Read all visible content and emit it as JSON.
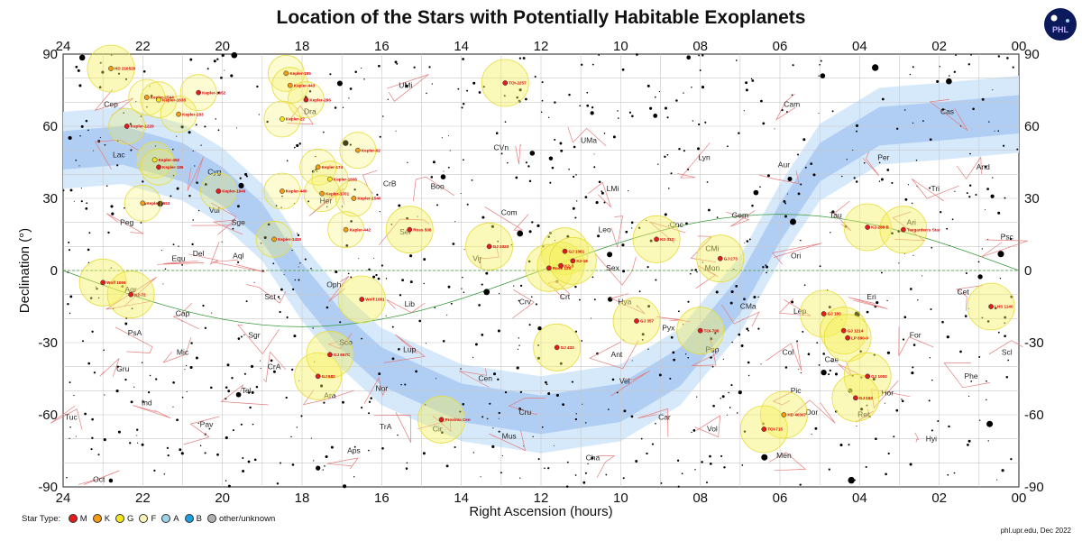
{
  "title": "Location of the Stars with Potentially Habitable Exoplanets",
  "logo_text": "PHL",
  "credit": "phl.upr.edu, Dec 2022",
  "map": {
    "xlabel": "Right Ascension (hours)",
    "ylabel": "Declination (°)",
    "ra_ticks": [
      "24",
      "22",
      "20",
      "18",
      "16",
      "14",
      "12",
      "10",
      "08",
      "06",
      "04",
      "02",
      "00"
    ],
    "dec_ticks": [
      "90",
      "60",
      "30",
      "0",
      "-30",
      "-60",
      "-90"
    ]
  },
  "chart_data": {
    "type": "scatter",
    "xlabel": "Right Ascension (hours)",
    "ylabel": "Declination (°)",
    "xlim": [
      24,
      0
    ],
    "ylim": [
      -90,
      90
    ],
    "grid": true,
    "constellations": [
      {
        "name": "UMi",
        "ra": 15.4,
        "dec": 76
      },
      {
        "name": "Cep",
        "ra": 22.8,
        "dec": 68
      },
      {
        "name": "Dra",
        "ra": 17.8,
        "dec": 65
      },
      {
        "name": "Cam",
        "ra": 5.7,
        "dec": 68
      },
      {
        "name": "Cas",
        "ra": 1.8,
        "dec": 65
      },
      {
        "name": "CVn",
        "ra": 13.0,
        "dec": 50
      },
      {
        "name": "UMa",
        "ra": 10.8,
        "dec": 53
      },
      {
        "name": "Lac",
        "ra": 22.6,
        "dec": 47
      },
      {
        "name": "Cyg",
        "ra": 20.2,
        "dec": 40
      },
      {
        "name": "CrB",
        "ra": 15.8,
        "dec": 35
      },
      {
        "name": "Boo",
        "ra": 14.6,
        "dec": 34
      },
      {
        "name": "Lyn",
        "ra": 7.9,
        "dec": 46
      },
      {
        "name": "Per",
        "ra": 3.4,
        "dec": 46
      },
      {
        "name": "Aur",
        "ra": 5.9,
        "dec": 43
      },
      {
        "name": "And",
        "ra": 0.9,
        "dec": 42
      },
      {
        "name": "LMi",
        "ra": 10.2,
        "dec": 33
      },
      {
        "name": "Tri",
        "ra": 2.1,
        "dec": 33
      },
      {
        "name": "Vul",
        "ra": 20.2,
        "dec": 24
      },
      {
        "name": "Com",
        "ra": 12.8,
        "dec": 23
      },
      {
        "name": "Gem",
        "ra": 7.0,
        "dec": 22
      },
      {
        "name": "Tau",
        "ra": 4.6,
        "dec": 22
      },
      {
        "name": "Peg",
        "ra": 22.4,
        "dec": 19
      },
      {
        "name": "Sge",
        "ra": 19.6,
        "dec": 19
      },
      {
        "name": "Her",
        "ra": 17.4,
        "dec": 28
      },
      {
        "name": "Ser",
        "ra": 15.4,
        "dec": 15
      },
      {
        "name": "Leo",
        "ra": 10.4,
        "dec": 16
      },
      {
        "name": "Cnc",
        "ra": 8.6,
        "dec": 18
      },
      {
        "name": "Ari",
        "ra": 2.7,
        "dec": 19
      },
      {
        "name": "Psc",
        "ra": 0.3,
        "dec": 13
      },
      {
        "name": "Vir",
        "ra": 13.6,
        "dec": 4
      },
      {
        "name": "CMi",
        "ra": 7.7,
        "dec": 8
      },
      {
        "name": "Equ",
        "ra": 21.1,
        "dec": 4
      },
      {
        "name": "Del",
        "ra": 20.6,
        "dec": 6
      },
      {
        "name": "Aql",
        "ra": 19.6,
        "dec": 5
      },
      {
        "name": "Ori",
        "ra": 5.6,
        "dec": 5
      },
      {
        "name": "Sex",
        "ra": 10.2,
        "dec": 0
      },
      {
        "name": "Mon",
        "ra": 7.7,
        "dec": 0
      },
      {
        "name": "Oph",
        "ra": 17.2,
        "dec": -7
      },
      {
        "name": "Sct",
        "ra": 18.8,
        "dec": -12
      },
      {
        "name": "Lib",
        "ra": 15.3,
        "dec": -15
      },
      {
        "name": "Crv",
        "ra": 12.4,
        "dec": -14
      },
      {
        "name": "Crt",
        "ra": 11.4,
        "dec": -12
      },
      {
        "name": "Hya",
        "ra": 9.9,
        "dec": -14
      },
      {
        "name": "Eri",
        "ra": 3.7,
        "dec": -12
      },
      {
        "name": "Cet",
        "ra": 1.4,
        "dec": -10
      },
      {
        "name": "Aqr",
        "ra": 22.3,
        "dec": -9
      },
      {
        "name": "Cap",
        "ra": 21.0,
        "dec": -19
      },
      {
        "name": "Lep",
        "ra": 5.5,
        "dec": -18
      },
      {
        "name": "CMa",
        "ra": 6.8,
        "dec": -16
      },
      {
        "name": "PsA",
        "ra": 22.2,
        "dec": -27
      },
      {
        "name": "Sgr",
        "ra": 19.2,
        "dec": -28
      },
      {
        "name": "Sco",
        "ra": 16.9,
        "dec": -31
      },
      {
        "name": "Pyx",
        "ra": 8.8,
        "dec": -25
      },
      {
        "name": "Pup",
        "ra": 7.7,
        "dec": -34
      },
      {
        "name": "For",
        "ra": 2.6,
        "dec": -28
      },
      {
        "name": "Mic",
        "ra": 21.0,
        "dec": -35
      },
      {
        "name": "Lup",
        "ra": 15.3,
        "dec": -34
      },
      {
        "name": "Ant",
        "ra": 10.1,
        "dec": -36
      },
      {
        "name": "Col",
        "ra": 5.8,
        "dec": -35
      },
      {
        "name": "Cae",
        "ra": 4.7,
        "dec": -38
      },
      {
        "name": "Scl",
        "ra": 0.3,
        "dec": -35
      },
      {
        "name": "Gru",
        "ra": 22.5,
        "dec": -42
      },
      {
        "name": "CrA",
        "ra": 18.7,
        "dec": -41
      },
      {
        "name": "Ara",
        "ra": 17.3,
        "dec": -53
      },
      {
        "name": "Nor",
        "ra": 16.0,
        "dec": -50
      },
      {
        "name": "Cen",
        "ra": 13.4,
        "dec": -46
      },
      {
        "name": "Vel",
        "ra": 9.9,
        "dec": -47
      },
      {
        "name": "Phe",
        "ra": 1.2,
        "dec": -45
      },
      {
        "name": "Hor",
        "ra": 3.3,
        "dec": -52
      },
      {
        "name": "Tel",
        "ra": 19.4,
        "dec": -51
      },
      {
        "name": "Pic",
        "ra": 5.6,
        "dec": -51
      },
      {
        "name": "Ind",
        "ra": 21.9,
        "dec": -56
      },
      {
        "name": "Cru",
        "ra": 12.4,
        "dec": -60
      },
      {
        "name": "Car",
        "ra": 8.9,
        "dec": -62
      },
      {
        "name": "Dor",
        "ra": 5.2,
        "dec": -60
      },
      {
        "name": "Ret",
        "ra": 3.9,
        "dec": -61
      },
      {
        "name": "Tuc",
        "ra": 23.8,
        "dec": -62
      },
      {
        "name": "Pav",
        "ra": 20.4,
        "dec": -65
      },
      {
        "name": "TrA",
        "ra": 15.9,
        "dec": -66
      },
      {
        "name": "Cir",
        "ra": 14.6,
        "dec": -67
      },
      {
        "name": "Mus",
        "ra": 12.8,
        "dec": -70
      },
      {
        "name": "Vol",
        "ra": 7.7,
        "dec": -67
      },
      {
        "name": "Hyi",
        "ra": 2.2,
        "dec": -71
      },
      {
        "name": "Aps",
        "ra": 16.7,
        "dec": -76
      },
      {
        "name": "Cha",
        "ra": 10.7,
        "dec": -79
      },
      {
        "name": "Men",
        "ra": 5.9,
        "dec": -78
      },
      {
        "name": "Oct",
        "ra": 23.1,
        "dec": -88
      }
    ],
    "planet_hosts": [
      {
        "label": "HD 216520",
        "ra": 22.8,
        "dec": 84,
        "type": "K"
      },
      {
        "label": "TOI-2257",
        "ra": 12.9,
        "dec": 78,
        "type": "M"
      },
      {
        "label": "Kepler-1544",
        "ra": 21.9,
        "dec": 72,
        "type": "K"
      },
      {
        "label": "Kepler-1638",
        "ra": 21.6,
        "dec": 71,
        "type": "G"
      },
      {
        "label": "Kepler-1652",
        "ra": 20.6,
        "dec": 74,
        "type": "M"
      },
      {
        "label": "Kepler-155",
        "ra": 18.4,
        "dec": 82,
        "type": "K"
      },
      {
        "label": "Kepler-443",
        "ra": 18.3,
        "dec": 77,
        "type": "K"
      },
      {
        "label": "Kepler-296",
        "ra": 17.9,
        "dec": 71,
        "type": "M"
      },
      {
        "label": "Kepler-283",
        "ra": 21.1,
        "dec": 65,
        "type": "K"
      },
      {
        "label": "Kepler-1229",
        "ra": 22.4,
        "dec": 60,
        "type": "M"
      },
      {
        "label": "Kepler-22",
        "ra": 18.5,
        "dec": 63,
        "type": "G"
      },
      {
        "label": "Kepler-62",
        "ra": 16.6,
        "dec": 50,
        "type": "K"
      },
      {
        "label": "Kepler-452",
        "ra": 21.7,
        "dec": 46,
        "type": "G"
      },
      {
        "label": "Kepler-186",
        "ra": 21.6,
        "dec": 43,
        "type": "M"
      },
      {
        "label": "Kepler-174",
        "ra": 17.6,
        "dec": 43,
        "type": "K"
      },
      {
        "label": "Kepler-1606",
        "ra": 17.3,
        "dec": 38,
        "type": "G"
      },
      {
        "label": "Kepler-440",
        "ra": 18.5,
        "dec": 33,
        "type": "K"
      },
      {
        "label": "Kepler-1701",
        "ra": 17.5,
        "dec": 32,
        "type": "K"
      },
      {
        "label": "Kepler-1540",
        "ra": 16.7,
        "dec": 30,
        "type": "K"
      },
      {
        "label": "Kepler-1649",
        "ra": 20.1,
        "dec": 33,
        "type": "M"
      },
      {
        "label": "Kepler-1653",
        "ra": 22.0,
        "dec": 28,
        "type": "K"
      },
      {
        "label": "Kepler-442",
        "ra": 16.9,
        "dec": 17,
        "type": "K"
      },
      {
        "label": "Kepler-1410",
        "ra": 18.7,
        "dec": 13,
        "type": "K"
      },
      {
        "label": "Ross 508",
        "ra": 15.3,
        "dec": 17,
        "type": "M"
      },
      {
        "label": "GJ 3323",
        "ra": 13.3,
        "dec": 10,
        "type": "M"
      },
      {
        "label": "GJ 1061",
        "ra": 11.4,
        "dec": 8,
        "type": "M"
      },
      {
        "label": "Ross 128",
        "ra": 11.8,
        "dec": 1,
        "type": "M"
      },
      {
        "label": "K2-3",
        "ra": 11.5,
        "dec": 2,
        "type": "M"
      },
      {
        "label": "K2-18",
        "ra": 11.2,
        "dec": 4,
        "type": "M"
      },
      {
        "label": "K2-332",
        "ra": 9.1,
        "dec": 13,
        "type": "M"
      },
      {
        "label": "GJ 273",
        "ra": 7.5,
        "dec": 5,
        "type": "M"
      },
      {
        "label": "K2-288 B",
        "ra": 3.8,
        "dec": 18,
        "type": "M"
      },
      {
        "label": "Teegarden's Star",
        "ra": 2.9,
        "dec": 17,
        "type": "M"
      },
      {
        "label": "Wolf 1069",
        "ra": 23.0,
        "dec": -5,
        "type": "M"
      },
      {
        "label": "K2-72",
        "ra": 22.3,
        "dec": -10,
        "type": "M"
      },
      {
        "label": "Wolf 1061",
        "ra": 16.5,
        "dec": -12,
        "type": "M"
      },
      {
        "label": "GJ 357",
        "ra": 9.6,
        "dec": -21,
        "type": "M"
      },
      {
        "label": "GJ 433",
        "ra": 11.6,
        "dec": -32,
        "type": "M"
      },
      {
        "label": "TOI-700",
        "ra": 8.0,
        "dec": -25,
        "type": "M"
      },
      {
        "label": "LHS 1140",
        "ra": 0.7,
        "dec": -15,
        "type": "M"
      },
      {
        "label": "GJ 180",
        "ra": 4.9,
        "dec": -18,
        "type": "M"
      },
      {
        "label": "GJ 1214",
        "ra": 4.4,
        "dec": -25,
        "type": "M"
      },
      {
        "label": "LP 890-9",
        "ra": 4.3,
        "dec": -28,
        "type": "M"
      },
      {
        "label": "GJ 682",
        "ra": 17.6,
        "dec": -44,
        "type": "M"
      },
      {
        "label": "GJ 667C",
        "ra": 17.3,
        "dec": -35,
        "type": "M"
      },
      {
        "label": "GJ 1002",
        "ra": 3.8,
        "dec": -44,
        "type": "M"
      },
      {
        "label": "GJ 163",
        "ra": 4.1,
        "dec": -53,
        "type": "M"
      },
      {
        "label": "Proxima Cen",
        "ra": 14.5,
        "dec": -62,
        "type": "M"
      },
      {
        "label": "HD 40307",
        "ra": 5.9,
        "dec": -60,
        "type": "K"
      },
      {
        "label": "TOI-715",
        "ra": 6.4,
        "dec": -66,
        "type": "M"
      }
    ],
    "legend": {
      "title": "Star Type:",
      "items": [
        {
          "label": "M",
          "color": "#e41a1c"
        },
        {
          "label": "K",
          "color": "#f39c12"
        },
        {
          "label": "G",
          "color": "#f5e61a"
        },
        {
          "label": "F",
          "color": "#fbf4b8"
        },
        {
          "label": "A",
          "color": "#9fd3ea"
        },
        {
          "label": "B",
          "color": "#1e9fe0"
        },
        {
          "label": "other/unknown",
          "color": "#b0b0b0"
        }
      ]
    }
  }
}
